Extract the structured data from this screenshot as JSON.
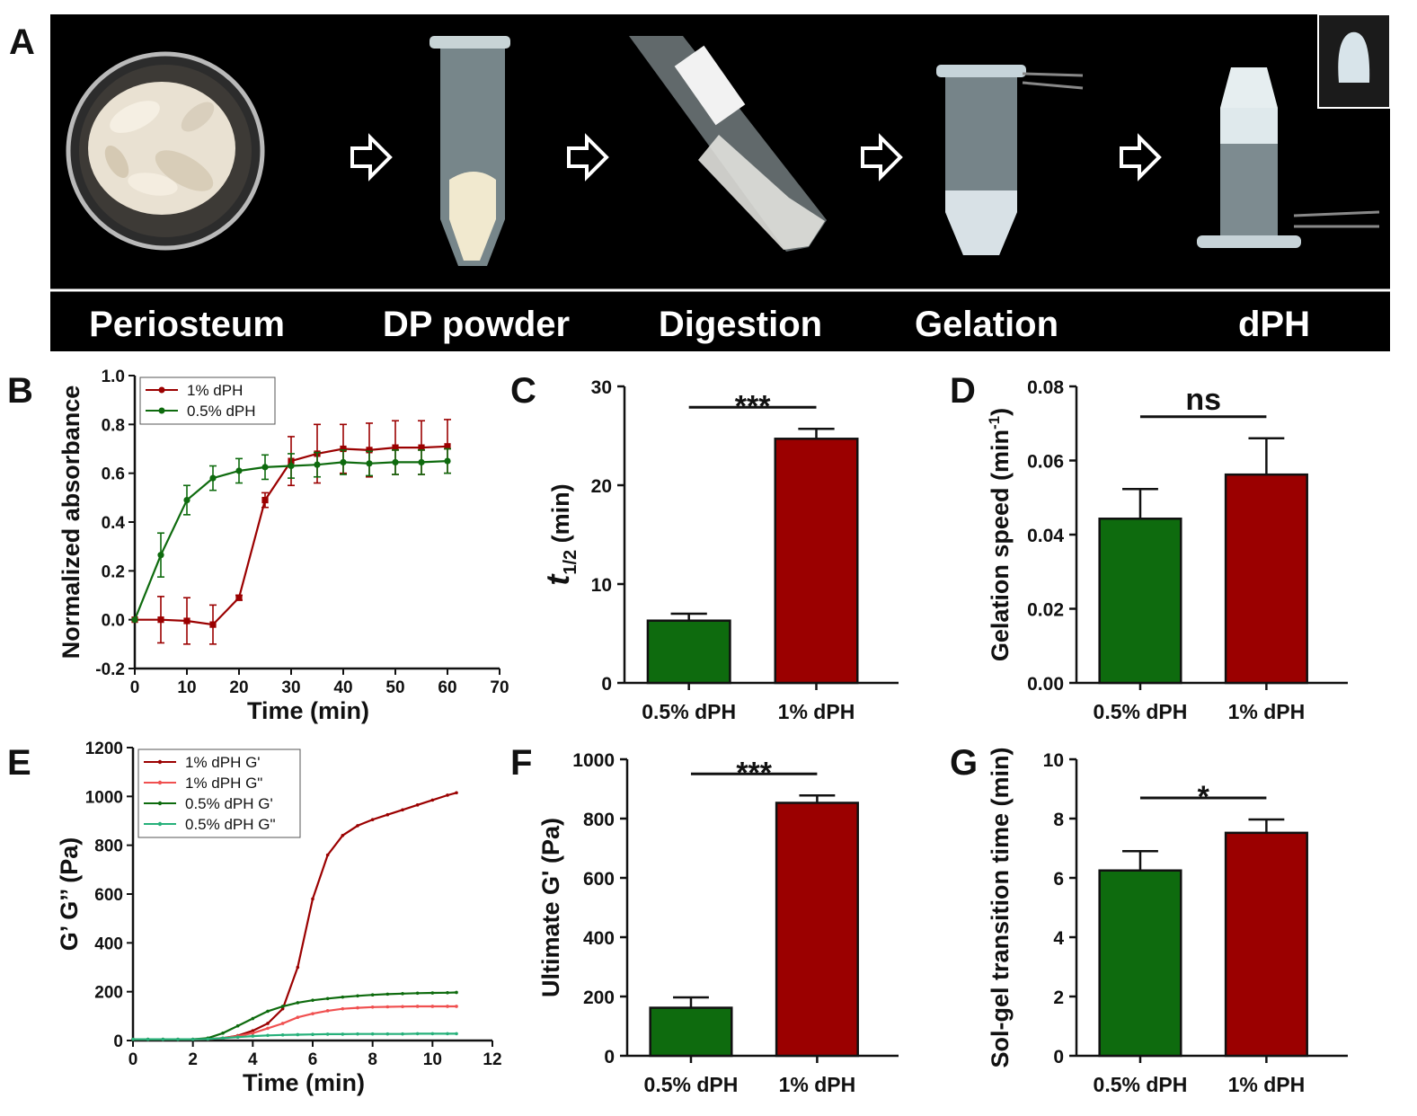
{
  "panels": {
    "A": "A",
    "B": "B",
    "C": "C",
    "D": "D",
    "E": "E",
    "F": "F",
    "G": "G"
  },
  "process_steps": [
    "Periosteum",
    "DP powder",
    "Digestion",
    "Gelation",
    "dPH"
  ],
  "colors": {
    "red": "#9b0000",
    "green": "#0e6b0e",
    "light_red": "#f05050",
    "teal": "#26b07a"
  },
  "chart_data": [
    {
      "id": "B",
      "type": "line",
      "xlabel": "Time (min)",
      "ylabel": "Normalized absorbance",
      "xlim": [
        0,
        70
      ],
      "ylim": [
        -0.2,
        1.0
      ],
      "xticks": [
        0,
        10,
        20,
        30,
        40,
        50,
        60,
        70
      ],
      "yticks": [
        -0.2,
        0.0,
        0.2,
        0.4,
        0.6,
        0.8,
        1.0
      ],
      "x": [
        0,
        5,
        10,
        15,
        20,
        25,
        30,
        35,
        40,
        45,
        50,
        55,
        60
      ],
      "legend_position": "top-left",
      "series": [
        {
          "name": "1% dPH",
          "color": "#9b0000",
          "values": [
            0.0,
            0.0,
            -0.005,
            -0.02,
            0.09,
            0.49,
            0.65,
            0.68,
            0.7,
            0.695,
            0.705,
            0.705,
            0.71
          ],
          "errors": [
            0.0,
            0.095,
            0.095,
            0.08,
            0.01,
            0.03,
            0.1,
            0.12,
            0.1,
            0.11,
            0.11,
            0.11,
            0.11
          ]
        },
        {
          "name": "0.5% dPH",
          "color": "#0e6b0e",
          "values": [
            0.0,
            0.265,
            0.49,
            0.58,
            0.61,
            0.625,
            0.63,
            0.635,
            0.645,
            0.64,
            0.645,
            0.645,
            0.65
          ],
          "errors": [
            0.0,
            0.09,
            0.06,
            0.05,
            0.05,
            0.05,
            0.05,
            0.05,
            0.05,
            0.05,
            0.05,
            0.05,
            0.05
          ]
        }
      ]
    },
    {
      "id": "C",
      "type": "bar",
      "ylabel_main": "t",
      "ylabel_sub": "1/2",
      "ylabel_unit": " (min)",
      "categories": [
        "0.5% dPH",
        "1% dPH"
      ],
      "values": [
        6.3,
        24.7
      ],
      "errors": [
        0.7,
        1.0
      ],
      "colors": [
        "#0e6b0e",
        "#9b0000"
      ],
      "ylim": [
        0,
        30
      ],
      "yticks": [
        0,
        10,
        20,
        30
      ],
      "significance": "***"
    },
    {
      "id": "D",
      "type": "bar",
      "ylabel": "Gelation speed (min",
      "ylabel_sup": "-1",
      "ylabel_end": ")",
      "categories": [
        "0.5% dPH",
        "1% dPH"
      ],
      "values": [
        0.0443,
        0.0562
      ],
      "errors": [
        0.008,
        0.0098
      ],
      "colors": [
        "#0e6b0e",
        "#9b0000"
      ],
      "ylim": [
        0,
        0.08
      ],
      "yticks": [
        "0.00",
        "0.02",
        "0.04",
        "0.06",
        "0.08"
      ],
      "significance": "ns"
    },
    {
      "id": "E",
      "type": "line",
      "xlabel": "Time (min)",
      "ylabel": "G’ G’’ (Pa)",
      "xlim": [
        0,
        12
      ],
      "ylim": [
        0,
        1200
      ],
      "xticks": [
        0,
        2,
        4,
        6,
        8,
        10,
        12
      ],
      "yticks": [
        0,
        200,
        400,
        600,
        800,
        1000,
        1200
      ],
      "legend_position": "top-left",
      "x": [
        0.0,
        0.5,
        1.0,
        1.5,
        2.0,
        2.5,
        3.0,
        3.5,
        4.0,
        4.5,
        5.0,
        5.5,
        6.0,
        6.5,
        7.0,
        7.5,
        8.0,
        8.5,
        9.0,
        9.5,
        10.0,
        10.5,
        10.8
      ],
      "series": [
        {
          "name": "1% dPH G'",
          "color": "#9b0000",
          "values": [
            5,
            5,
            5,
            5,
            5,
            6,
            10,
            20,
            40,
            70,
            130,
            300,
            580,
            760,
            840,
            880,
            905,
            925,
            945,
            965,
            985,
            1005,
            1015
          ]
        },
        {
          "name": "1% dPH G\"",
          "color": "#f05050",
          "values": [
            5,
            5,
            5,
            5,
            5,
            6,
            10,
            18,
            30,
            50,
            70,
            95,
            110,
            122,
            130,
            134,
            137,
            138,
            139,
            140,
            140,
            140,
            140
          ]
        },
        {
          "name": "0.5% dPH G'",
          "color": "#0e6b0e",
          "values": [
            5,
            5,
            5,
            5,
            5,
            10,
            30,
            60,
            90,
            120,
            140,
            155,
            165,
            172,
            178,
            183,
            187,
            190,
            192,
            194,
            195,
            196,
            197
          ]
        },
        {
          "name": "0.5% dPH G\"",
          "color": "#26b07a",
          "values": [
            5,
            5,
            5,
            5,
            5,
            6,
            10,
            14,
            18,
            21,
            23,
            24,
            25,
            26,
            26,
            27,
            27,
            27,
            27,
            28,
            28,
            28,
            28
          ]
        }
      ]
    },
    {
      "id": "F",
      "type": "bar",
      "ylabel": "Ultimate G' (Pa)",
      "categories": [
        "0.5% dPH",
        "1% dPH"
      ],
      "values": [
        162,
        853
      ],
      "errors": [
        35,
        25
      ],
      "colors": [
        "#0e6b0e",
        "#9b0000"
      ],
      "ylim": [
        0,
        1000
      ],
      "yticks": [
        0,
        200,
        400,
        600,
        800,
        1000
      ],
      "significance": "***"
    },
    {
      "id": "G",
      "type": "bar",
      "ylabel": "Sol-gel transition time (min)",
      "categories": [
        "0.5% dPH",
        "1% dPH"
      ],
      "values": [
        6.25,
        7.52
      ],
      "errors": [
        0.65,
        0.45
      ],
      "colors": [
        "#0e6b0e",
        "#9b0000"
      ],
      "ylim": [
        0,
        10
      ],
      "yticks": [
        0,
        2,
        4,
        6,
        8,
        10
      ],
      "significance": "*"
    }
  ]
}
